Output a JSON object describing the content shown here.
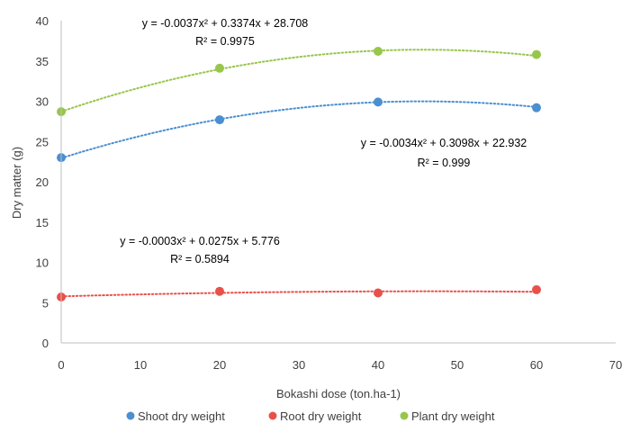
{
  "chart_data": {
    "type": "scatter",
    "xlabel": "Bokashi dose (ton.ha-1)",
    "ylabel": "Dry matter  (g)",
    "xlim": [
      0,
      70
    ],
    "ylim": [
      0,
      40
    ],
    "xticks": [
      0,
      10,
      20,
      30,
      40,
      50,
      60,
      70
    ],
    "yticks": [
      0,
      5,
      10,
      15,
      20,
      25,
      30,
      35,
      40
    ],
    "grid": false,
    "legend_position": "bottom",
    "series": [
      {
        "name": "Shoot dry weight",
        "color": "#4a8fd0",
        "x": [
          0,
          20,
          40,
          60
        ],
        "y": [
          23.0,
          27.7,
          29.9,
          29.2
        ],
        "trendline": {
          "type": "polynomial",
          "coef": [
            -0.0034,
            0.3098,
            22.932
          ]
        },
        "equation": "y = -0.0034x² + 0.3098x + 22.932",
        "r2": "R² = 0.999"
      },
      {
        "name": "Root dry weight",
        "color": "#e8514a",
        "x": [
          0,
          20,
          40,
          60
        ],
        "y": [
          5.7,
          6.4,
          6.2,
          6.6
        ],
        "trendline": {
          "type": "polynomial",
          "coef": [
            -0.0003,
            0.0275,
            5.776
          ]
        },
        "equation": "y = -0.0003x² + 0.0275x + 5.776",
        "r2": "R² = 0.5894"
      },
      {
        "name": "Plant dry weight",
        "color": "#97c64b",
        "x": [
          0,
          20,
          40,
          60
        ],
        "y": [
          28.7,
          34.1,
          36.2,
          35.8
        ],
        "trendline": {
          "type": "polynomial",
          "coef": [
            -0.0037,
            0.3374,
            28.708
          ]
        },
        "equation": "y = -0.0037x² + 0.3374x + 28.708",
        "r2": "R² = 0.9975"
      }
    ]
  }
}
